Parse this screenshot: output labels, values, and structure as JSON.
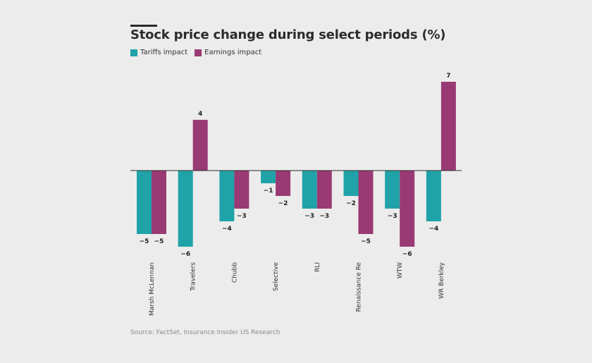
{
  "chart_data": {
    "type": "bar",
    "title": "Stock price change during select periods (%)",
    "categories": [
      "Marsh McLennan",
      "Travelers",
      "Chubb",
      "Selective",
      "RLI",
      "Renaissance Re",
      "WTW",
      "WR Berkley"
    ],
    "series": [
      {
        "name": "Tariffs impact",
        "color": "#1fa3a8",
        "values": [
          -5,
          -6,
          -4,
          -1,
          -3,
          -2,
          -3,
          -4
        ],
        "labels": [
          "−5",
          "−6",
          "−4",
          "−1",
          "−3",
          "−2",
          "−3",
          "−4"
        ]
      },
      {
        "name": "Earnings impact",
        "color": "#993a74",
        "values": [
          -5,
          4,
          -3,
          -2,
          -3,
          -5,
          -6,
          7
        ],
        "labels": [
          "−5",
          "4",
          "−3",
          "−2",
          "−3",
          "−5",
          "−6",
          "7"
        ]
      }
    ],
    "ylim": [
      -6,
      7
    ],
    "xlabel": "",
    "ylabel": "",
    "grid": false,
    "legend_position": "top-left"
  },
  "source": "Source: FactSet, Insurance Insider US Research"
}
